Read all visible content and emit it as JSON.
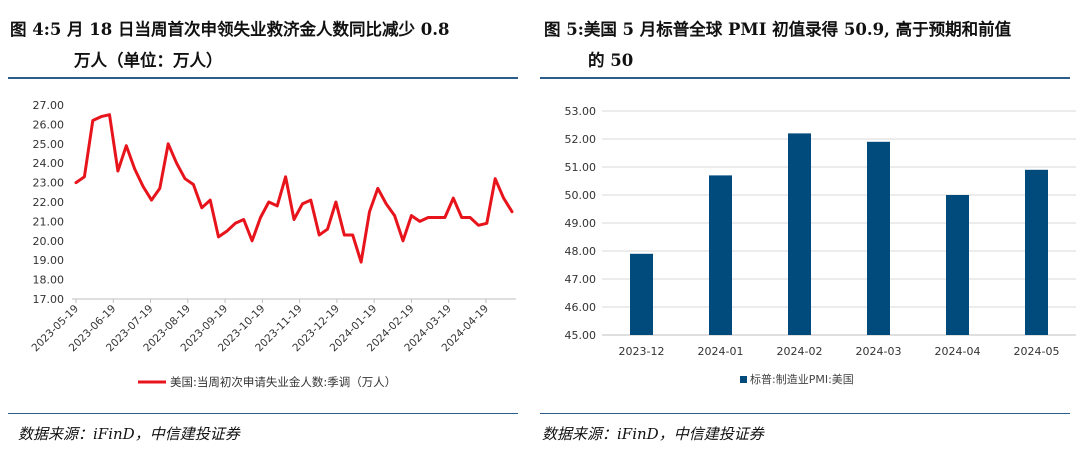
{
  "left": {
    "title_line1": "图  4:5 月 18 日当周首次申领失业救济金人数同比减少 0.8",
    "title_line2": "万人（单位：万人）",
    "source": "数据来源：iFinD，中信建投证券"
  },
  "right": {
    "title_line1": "图  5:美国 5 月标普全球 PMI 初值录得 50.9, 高于预期和前值",
    "title_line2": "的 50",
    "source": "数据来源：iFinD，中信建投证券"
  },
  "colors": {
    "line": "#e8141c",
    "bar": "#004a7c",
    "rule": "#2b5c8a",
    "grid": "#d9d9d9"
  },
  "chart_data": [
    {
      "type": "line",
      "title": "",
      "ylim": [
        17,
        27
      ],
      "yticks": [
        "27.00",
        "26.00",
        "25.00",
        "24.00",
        "23.00",
        "22.00",
        "21.00",
        "20.00",
        "19.00",
        "18.00",
        "17.00"
      ],
      "xticks": [
        "2023-05-19",
        "2023-06-19",
        "2023-07-19",
        "2023-08-19",
        "2023-09-19",
        "2023-10-19",
        "2023-11-19",
        "2023-12-19",
        "2024-01-19",
        "2024-02-19",
        "2024-03-19",
        "2024-04-19"
      ],
      "series": [
        {
          "name": "美国:当周初次申请失业金人数:季调（万人）",
          "values": [
            23.0,
            23.3,
            26.2,
            26.4,
            26.5,
            23.6,
            24.9,
            23.7,
            22.8,
            22.1,
            22.7,
            25.0,
            24.0,
            23.2,
            22.9,
            21.7,
            22.1,
            20.2,
            20.5,
            20.9,
            21.1,
            20.0,
            21.2,
            22.0,
            21.8,
            23.3,
            21.1,
            21.9,
            22.1,
            20.3,
            20.6,
            22.0,
            20.3,
            20.3,
            18.9,
            21.5,
            22.7,
            21.9,
            21.3,
            20.0,
            21.3,
            21.0,
            21.2,
            21.2,
            21.2,
            22.2,
            21.2,
            21.2,
            20.8,
            20.9,
            23.2,
            22.2,
            21.5
          ]
        }
      ]
    },
    {
      "type": "bar",
      "title": "",
      "ylim": [
        45,
        53
      ],
      "yticks": [
        "53.00",
        "52.00",
        "51.00",
        "50.00",
        "49.00",
        "48.00",
        "47.00",
        "46.00",
        "45.00"
      ],
      "categories": [
        "2023-12",
        "2024-01",
        "2024-02",
        "2024-03",
        "2024-04",
        "2024-05"
      ],
      "series": [
        {
          "name": "标普:制造业PMI:美国",
          "values": [
            47.9,
            50.7,
            52.2,
            51.9,
            50.0,
            50.9
          ]
        }
      ]
    }
  ]
}
